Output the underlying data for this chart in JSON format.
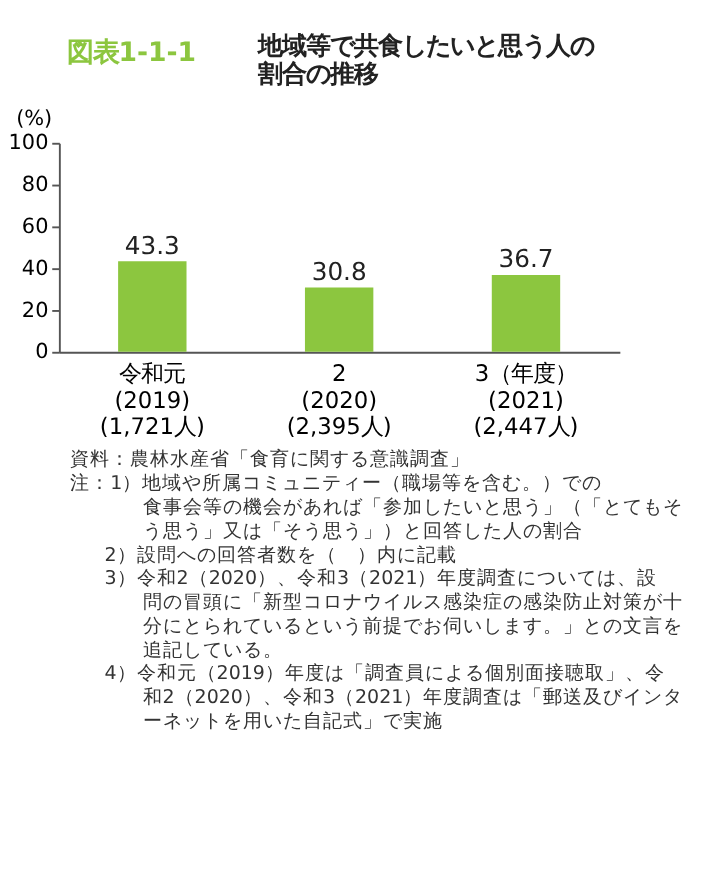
{
  "chart_data": {
    "type": "bar",
    "subtitle": "図表1-1-1",
    "title": "地域等で共食したいと思う人の割合の推移",
    "ylabel": "(%)",
    "categories": [
      "令和元\n(2019)\n(1,721人)",
      "2\n(2020)\n(2,395人)",
      "3（年度）\n(2021)\n(2,447人)"
    ],
    "values": [
      43.3,
      30.8,
      36.7
    ],
    "color": "#8cc63f",
    "ylim": [
      0,
      100
    ],
    "yticks": [
      0,
      20,
      40,
      60,
      80,
      100
    ],
    "grid": false,
    "data_labels": true,
    "annotations": [
      "資料：農林水産省「食育に関する意識調査」",
      "注：1）地域や所属コミュニティー（職場等を含む。）での食事会等の機会があれば「参加したいと思う」（「とてもそう思う」又は「そう思う」）と回答した人の割合",
      "2）設問への回答者数を（　）内に記載",
      "3）令和2（2020）、令和3（2021）年度調査については、設問の冒頭に「新型コロナウイルス感染症の感染防止対策が十分にとられているという前提でお伺いします。」との文言を追記している。",
      "4）令和元（2019）年度は「調査員による個別面接聴取」、令和2（2020）、令和3（2021）年度調査は「郵送及びインターネットを用いた自記式」で実施"
    ]
  }
}
